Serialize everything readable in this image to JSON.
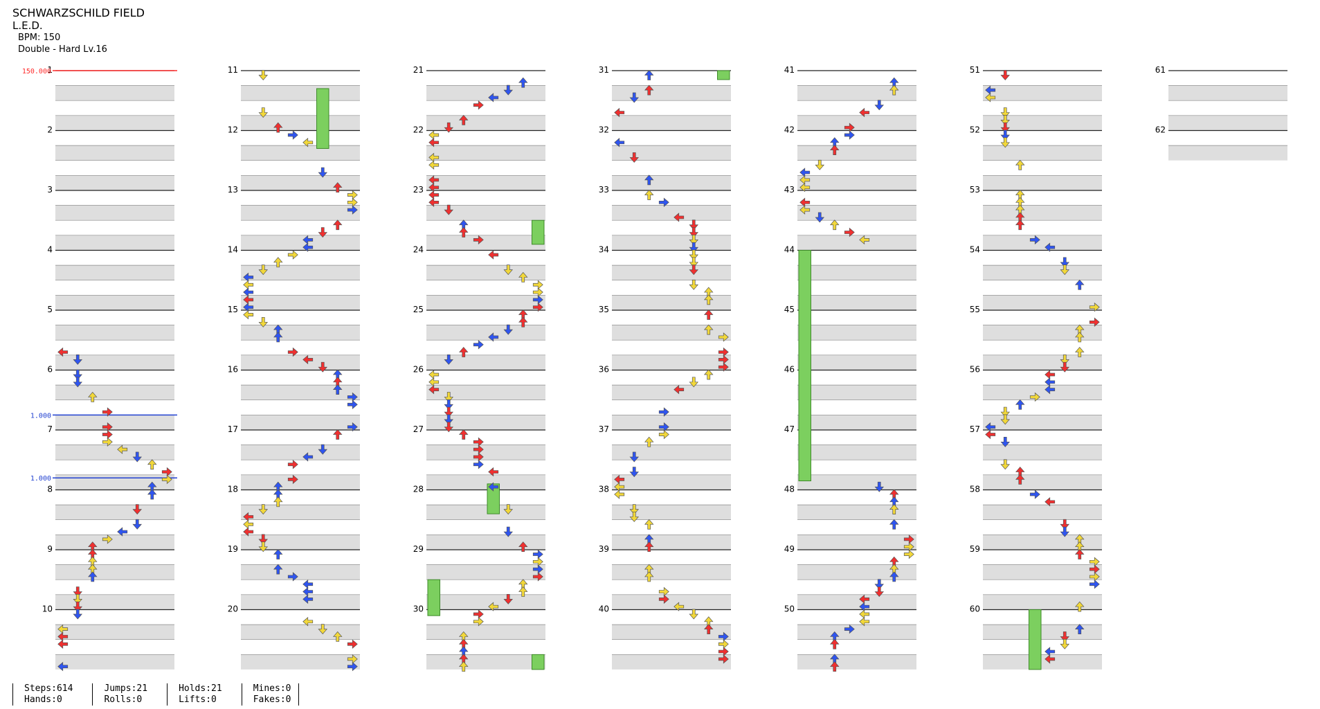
{
  "song": {
    "title": "SCHWARZSCHILD FIELD",
    "artist": "L.E.D.",
    "bpm_label": "BPM: 150",
    "chart_label": "Double - Hard  Lv.16"
  },
  "measures": {
    "first": 1,
    "last": 62,
    "per_column": 10,
    "columns": 7,
    "last_column_measures": [
      "61",
      "62"
    ]
  },
  "markers": [
    {
      "label": "150.000",
      "color": "#ff2a2a",
      "measure": 1.0
    },
    {
      "label": "1.000",
      "color": "#2040d0",
      "measure": 6.75
    },
    {
      "label": "1.000",
      "color": "#2040d0",
      "measure": 7.8
    }
  ],
  "arrow_colors": {
    "red": "#f03030",
    "blue": "#2f55f0",
    "yellow": "#f2d83a",
    "hold": "#7ccf5f"
  },
  "holds": [
    {
      "lane": 5,
      "start": 11.3,
      "end": 12.3
    },
    {
      "lane": 7,
      "start": 23.5,
      "end": 23.9
    },
    {
      "lane": 4,
      "start": 27.9,
      "end": 28.4
    },
    {
      "lane": 0,
      "start": 29.5,
      "end": 30.1
    },
    {
      "lane": 7,
      "start": 30.75,
      "end": 31.0
    },
    {
      "lane": 7,
      "start": 31.0,
      "end": 31.15
    },
    {
      "lane": 0,
      "start": 44.0,
      "end": 47.85
    },
    {
      "lane": 3,
      "start": 60.0,
      "end": 61.0
    }
  ],
  "stats": {
    "steps": "Steps:614",
    "hands": "Hands:0",
    "jumps": "Jumps:21",
    "rolls": "Rolls:0",
    "holds": "Holds:21",
    "lifts": "Lifts:0",
    "mines": "Mines:0",
    "fakes": "Fakes:0"
  }
}
